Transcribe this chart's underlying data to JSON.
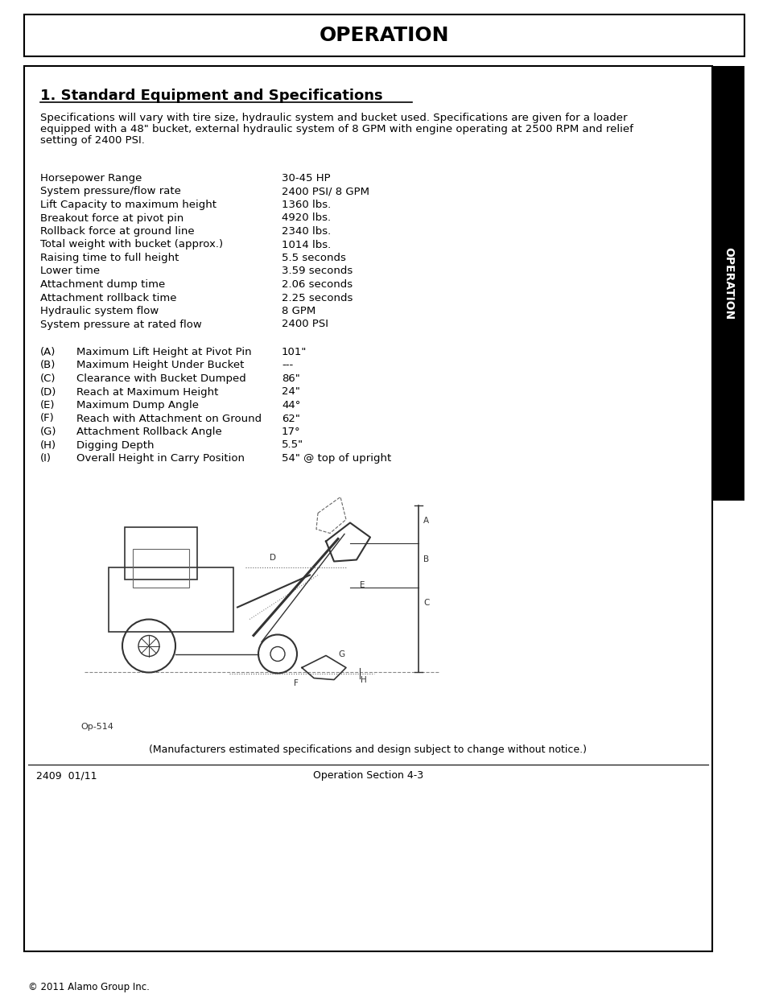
{
  "page_bg": "#ffffff",
  "outer_border_color": "#000000",
  "header_text": "OPERATION",
  "header_bg": "#ffffff",
  "header_font_size": 18,
  "section_title": "1. Standard Equipment and Specifications",
  "section_title_font_size": 13,
  "intro_text": "Specifications will vary with tire size, hydraulic system and bucket used. Specifications are given for a loader\nequipped with a 48\" bucket, external hydraulic system of 8 GPM with engine operating at 2500 RPM and relief\nsetting of 2400 PSI.",
  "intro_font_size": 9.5,
  "specs_left": [
    "Horsepower Range",
    "System pressure/flow rate",
    "Lift Capacity to maximum height",
    "Breakout force at pivot pin",
    "Rollback force at ground line",
    "Total weight with bucket (approx.)",
    "Raising time to full height",
    "Lower time",
    "Attachment dump time",
    "Attachment rollback time",
    "Hydraulic system flow",
    "System pressure at rated flow"
  ],
  "specs_right": [
    "30-45 HP",
    "2400 PSI/ 8 GPM",
    "1360 lbs.",
    "4920 lbs.",
    "2340 lbs.",
    "1014 lbs.",
    "5.5 seconds",
    "3.59 seconds",
    "2.06 seconds",
    "2.25 seconds",
    "8 GPM",
    "2400 PSI"
  ],
  "letter_specs": [
    [
      "(A)",
      "Maximum Lift Height at Pivot Pin",
      "101\""
    ],
    [
      "(B)",
      "Maximum Height Under Bucket",
      "---"
    ],
    [
      "(C)",
      "Clearance with Bucket Dumped",
      "86\""
    ],
    [
      "(D)",
      "Reach at Maximum Height",
      "24\""
    ],
    [
      "(E)",
      "Maximum Dump Angle",
      "44°"
    ],
    [
      "(F)",
      "Reach with Attachment on Ground",
      "62\""
    ],
    [
      "(G)",
      "Attachment Rollback Angle",
      "17°"
    ],
    [
      "(H)",
      "Digging Depth",
      "5.5\""
    ],
    [
      "(I)",
      "Overall Height in Carry Position",
      "54\" @ top of upright"
    ]
  ],
  "footer_note": "(Manufacturers estimated specifications and design subject to change without notice.)",
  "footer_left": "2409  01/11",
  "footer_center": "Operation Section 4-3",
  "copyright": "© 2011 Alamo Group Inc.",
  "sidebar_text": "OPERATION",
  "sidebar_bg": "#000000",
  "sidebar_text_color": "#ffffff",
  "diagram_caption": "Op-514",
  "spec_font_size": 9.5,
  "letter_font_size": 9.5
}
